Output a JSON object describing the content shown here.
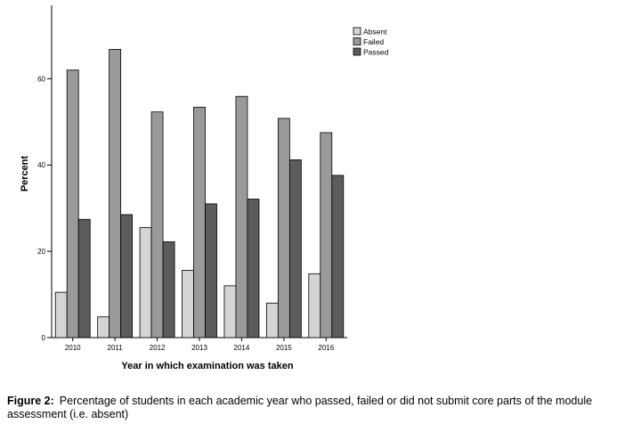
{
  "chart_data": {
    "type": "bar",
    "categories": [
      "2010",
      "2011",
      "2012",
      "2013",
      "2014",
      "2015",
      "2016"
    ],
    "series": [
      {
        "name": "Absent",
        "color": "#d4d4d4",
        "values": [
          10.5,
          4.8,
          25.5,
          15.6,
          12.0,
          8.0,
          14.8
        ]
      },
      {
        "name": "Failed",
        "color": "#9a9a9a",
        "values": [
          62.0,
          66.8,
          52.3,
          53.4,
          55.9,
          50.8,
          47.5
        ]
      },
      {
        "name": "Passed",
        "color": "#5c5c5c",
        "values": [
          27.4,
          28.5,
          22.2,
          31.0,
          32.1,
          41.2,
          37.6
        ]
      }
    ],
    "xlabel": "Year in which examination was taken",
    "ylabel": "Percent",
    "ylim": [
      0,
      77
    ],
    "yticks": [
      0,
      20,
      40,
      60
    ],
    "grid": false,
    "legend_position": "top-right"
  },
  "caption": {
    "label": "Figure 2:",
    "text": "Percentage of students in each academic year who passed, failed or did not submit core parts of the module assessment (i.e. absent)"
  }
}
